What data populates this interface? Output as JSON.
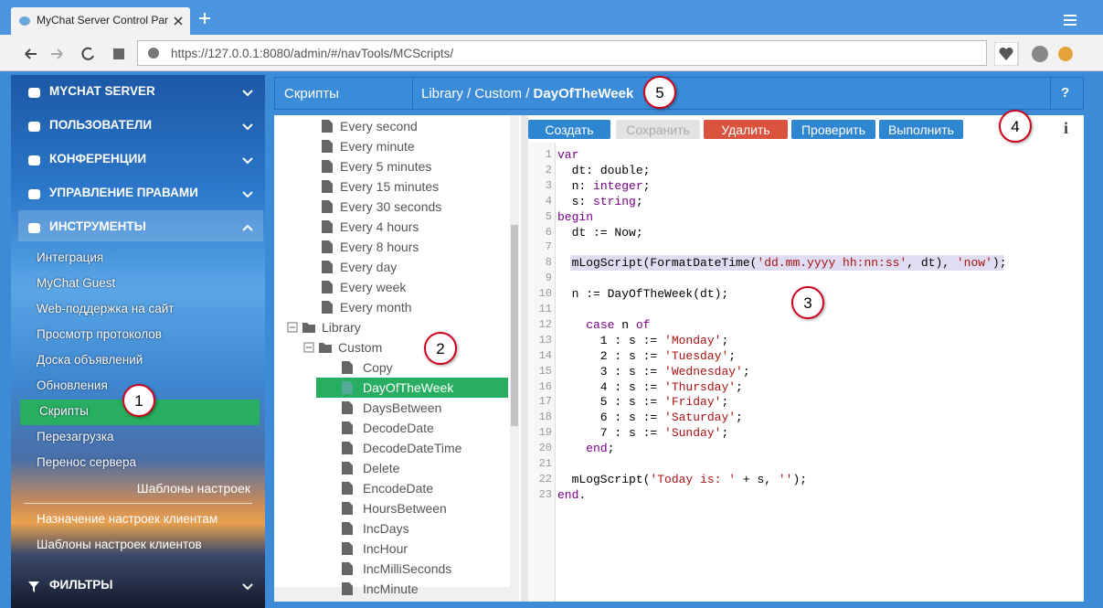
{
  "browser": {
    "tab_title": "MyChat Server Control Par",
    "url": "https://127.0.0.1:8080/admin/#/navTools/MCScripts/"
  },
  "sidebar": {
    "sections": [
      "MYCHAT SERVER",
      "ПОЛЬЗОВАТЕЛИ",
      "КОНФЕРЕНЦИИ",
      "УПРАВЛЕНИЕ ПРАВАМИ",
      "ИНСТРУМЕНТЫ"
    ],
    "tools": [
      "Интеграция",
      "MyChat Guest",
      "Web-поддержка на сайт",
      "Просмотр протоколов",
      "Доска объявлений",
      "Обновления",
      "Скрипты",
      "Перезагрузка",
      "Перенос сервера"
    ],
    "templates_heading": "Шаблоны настроек",
    "templates": [
      "Назначение настроек клиентам",
      "Шаблоны настроек клиентов"
    ],
    "filters": "ФИЛЬТРЫ"
  },
  "header": {
    "section": "Скрипты",
    "path": "Library / Custom /",
    "current": "DayOfTheWeek",
    "help": "?"
  },
  "tree": {
    "schedules": [
      "Every second",
      "Every minute",
      "Every 5 minutes",
      "Every 15 minutes",
      "Every 30 seconds",
      "Every 4 hours",
      "Every 8 hours",
      "Every day",
      "Every week",
      "Every month"
    ],
    "library": "Library",
    "custom": "Custom",
    "scripts": [
      "Copy",
      "DayOfTheWeek",
      "DaysBetween",
      "DecodeDate",
      "DecodeDateTime",
      "Delete",
      "EncodeDate",
      "HoursBetween",
      "IncDays",
      "IncHour",
      "IncMilliSeconds",
      "IncMinute"
    ]
  },
  "toolbar": {
    "buttons": [
      "Создать",
      "Сохранить",
      "Удалить",
      "Проверить",
      "Выполнить"
    ],
    "info": "i"
  },
  "editor": {
    "line_numbers": [
      1,
      2,
      3,
      4,
      5,
      6,
      7,
      8,
      9,
      10,
      11,
      12,
      13,
      14,
      15,
      16,
      17,
      18,
      19,
      20,
      21,
      22,
      23
    ],
    "highlight_line": 8,
    "lines": [
      [
        {
          "t": "var",
          "c": "#770088"
        }
      ],
      [
        {
          "t": "  dt: ",
          "c": "#000000"
        },
        {
          "t": "double",
          "c": "#000000"
        },
        {
          "t": ";",
          "c": "#000000"
        }
      ],
      [
        {
          "t": "  n: ",
          "c": "#000000"
        },
        {
          "t": "integer",
          "c": "#770088"
        },
        {
          "t": ";",
          "c": "#000000"
        }
      ],
      [
        {
          "t": "  s: ",
          "c": "#000000"
        },
        {
          "t": "string",
          "c": "#770088"
        },
        {
          "t": ";",
          "c": "#000000"
        }
      ],
      [
        {
          "t": "begin",
          "c": "#770088"
        }
      ],
      [
        {
          "t": "  dt := Now;",
          "c": "#000000"
        }
      ],
      [],
      [
        {
          "t": "  mLogScript(FormatDateTime(",
          "c": "#000000"
        },
        {
          "t": "'dd.mm.yyyy hh:nn:ss'",
          "c": "#aa1111"
        },
        {
          "t": ", dt), ",
          "c": "#000000"
        },
        {
          "t": "'now'",
          "c": "#aa1111"
        },
        {
          "t": ");",
          "c": "#000000"
        }
      ],
      [],
      [
        {
          "t": "  n := DayOfTheWeek(dt);",
          "c": "#000000"
        }
      ],
      [],
      [
        {
          "t": "    ",
          "c": "#000000"
        },
        {
          "t": "case",
          "c": "#770088"
        },
        {
          "t": " n ",
          "c": "#000000"
        },
        {
          "t": "of",
          "c": "#770088"
        }
      ],
      [
        {
          "t": "      1 : s := ",
          "c": "#000000"
        },
        {
          "t": "'Monday'",
          "c": "#aa1111"
        },
        {
          "t": ";",
          "c": "#000000"
        }
      ],
      [
        {
          "t": "      2 : s := ",
          "c": "#000000"
        },
        {
          "t": "'Tuesday'",
          "c": "#aa1111"
        },
        {
          "t": ";",
          "c": "#000000"
        }
      ],
      [
        {
          "t": "      3 : s := ",
          "c": "#000000"
        },
        {
          "t": "'Wednesday'",
          "c": "#aa1111"
        },
        {
          "t": ";",
          "c": "#000000"
        }
      ],
      [
        {
          "t": "      4 : s := ",
          "c": "#000000"
        },
        {
          "t": "'Thursday'",
          "c": "#aa1111"
        },
        {
          "t": ";",
          "c": "#000000"
        }
      ],
      [
        {
          "t": "      5 : s := ",
          "c": "#000000"
        },
        {
          "t": "'Friday'",
          "c": "#aa1111"
        },
        {
          "t": ";",
          "c": "#000000"
        }
      ],
      [
        {
          "t": "      6 : s := ",
          "c": "#000000"
        },
        {
          "t": "'Saturday'",
          "c": "#aa1111"
        },
        {
          "t": ";",
          "c": "#000000"
        }
      ],
      [
        {
          "t": "      7 : s := ",
          "c": "#000000"
        },
        {
          "t": "'Sunday'",
          "c": "#aa1111"
        },
        {
          "t": ";",
          "c": "#000000"
        }
      ],
      [
        {
          "t": "    ",
          "c": "#000000"
        },
        {
          "t": "end",
          "c": "#770088"
        },
        {
          "t": ";",
          "c": "#000000"
        }
      ],
      [],
      [
        {
          "t": "  mLogScript(",
          "c": "#000000"
        },
        {
          "t": "'Today is: '",
          "c": "#aa1111"
        },
        {
          "t": " + s, ",
          "c": "#000000"
        },
        {
          "t": "''",
          "c": "#aa1111"
        },
        {
          "t": ");",
          "c": "#000000"
        }
      ],
      [
        {
          "t": "end",
          "c": "#770088"
        },
        {
          "t": ".",
          "c": "#000000"
        }
      ]
    ]
  },
  "callouts": [
    1,
    2,
    3,
    4,
    5
  ]
}
